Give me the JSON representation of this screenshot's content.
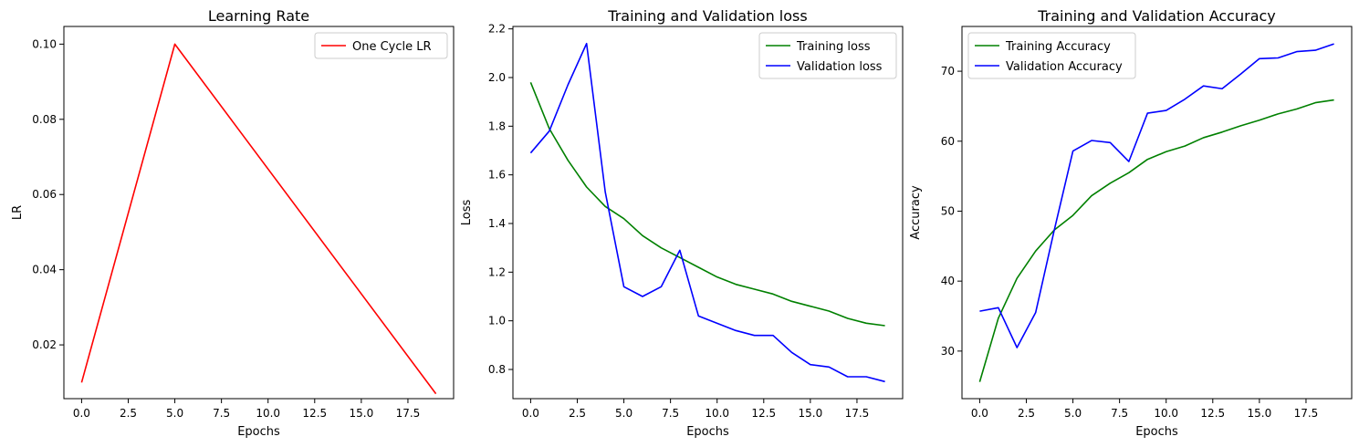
{
  "chart_data": [
    {
      "type": "line",
      "title": "Learning Rate",
      "xlabel": "Epochs",
      "ylabel": "LR",
      "xlim": [
        -0.95,
        19.95
      ],
      "ylim": [
        0.0057,
        0.1047
      ],
      "xticks": [
        0.0,
        2.5,
        5.0,
        7.5,
        10.0,
        12.5,
        15.0,
        17.5
      ],
      "xtick_labels": [
        "0.0",
        "2.5",
        "5.0",
        "7.5",
        "10.0",
        "12.5",
        "15.0",
        "17.5"
      ],
      "yticks": [
        0.02,
        0.04,
        0.06,
        0.08,
        0.1
      ],
      "ytick_labels": [
        "0.02",
        "0.04",
        "0.06",
        "0.08",
        "0.10"
      ],
      "grid": false,
      "legend_position": "upper-right",
      "series": [
        {
          "name": "One Cycle LR",
          "color": "#ff0000",
          "x": [
            0,
            5,
            19
          ],
          "y": [
            0.01,
            0.1,
            0.007
          ]
        }
      ]
    },
    {
      "type": "line",
      "title": "Training and Validation loss",
      "xlabel": "Epochs",
      "ylabel": "Loss",
      "xlim": [
        -0.95,
        19.95
      ],
      "ylim": [
        0.68,
        2.21
      ],
      "xticks": [
        0.0,
        2.5,
        5.0,
        7.5,
        10.0,
        12.5,
        15.0,
        17.5
      ],
      "xtick_labels": [
        "0.0",
        "2.5",
        "5.0",
        "7.5",
        "10.0",
        "12.5",
        "15.0",
        "17.5"
      ],
      "yticks": [
        0.8,
        1.0,
        1.2,
        1.4,
        1.6,
        1.8,
        2.0,
        2.2
      ],
      "ytick_labels": [
        "0.8",
        "1.0",
        "1.2",
        "1.4",
        "1.6",
        "1.8",
        "2.0",
        "2.2"
      ],
      "grid": false,
      "legend_position": "upper-right",
      "series": [
        {
          "name": "Training loss",
          "color": "#008000",
          "x": [
            0,
            1,
            2,
            3,
            4,
            5,
            6,
            7,
            8,
            9,
            10,
            11,
            12,
            13,
            14,
            15,
            16,
            17,
            18,
            19
          ],
          "y": [
            1.98,
            1.79,
            1.66,
            1.55,
            1.47,
            1.42,
            1.35,
            1.3,
            1.26,
            1.22,
            1.18,
            1.15,
            1.13,
            1.11,
            1.08,
            1.06,
            1.04,
            1.01,
            0.99,
            0.98
          ]
        },
        {
          "name": "Validation loss",
          "color": "#0000ff",
          "x": [
            0,
            1,
            2,
            3,
            4,
            5,
            6,
            7,
            8,
            9,
            10,
            11,
            12,
            13,
            14,
            15,
            16,
            17,
            18,
            19
          ],
          "y": [
            1.69,
            1.78,
            1.97,
            2.14,
            1.53,
            1.14,
            1.1,
            1.14,
            1.29,
            1.02,
            0.99,
            0.96,
            0.94,
            0.94,
            0.87,
            0.82,
            0.81,
            0.77,
            0.77,
            0.75
          ]
        }
      ]
    },
    {
      "type": "line",
      "title": "Training and Validation Accuracy",
      "xlabel": "Epochs",
      "ylabel": "Accuracy",
      "xlim": [
        -0.95,
        19.95
      ],
      "ylim": [
        23.2,
        76.4
      ],
      "xticks": [
        0.0,
        2.5,
        5.0,
        7.5,
        10.0,
        12.5,
        15.0,
        17.5
      ],
      "xtick_labels": [
        "0.0",
        "2.5",
        "5.0",
        "7.5",
        "10.0",
        "12.5",
        "15.0",
        "17.5"
      ],
      "yticks": [
        30,
        40,
        50,
        60,
        70
      ],
      "ytick_labels": [
        "30",
        "40",
        "50",
        "60",
        "70"
      ],
      "grid": false,
      "legend_position": "upper-left",
      "series": [
        {
          "name": "Training Accuracy",
          "color": "#008000",
          "x": [
            0,
            1,
            2,
            3,
            4,
            5,
            6,
            7,
            8,
            9,
            10,
            11,
            12,
            13,
            14,
            15,
            16,
            17,
            18,
            19
          ],
          "y": [
            25.6,
            34.7,
            40.4,
            44.3,
            47.3,
            49.4,
            52.2,
            54.0,
            55.5,
            57.4,
            58.5,
            59.3,
            60.5,
            61.3,
            62.2,
            63.0,
            63.9,
            64.6,
            65.5,
            65.9
          ]
        },
        {
          "name": "Validation Accuracy",
          "color": "#0000ff",
          "x": [
            0,
            1,
            2,
            3,
            4,
            5,
            6,
            7,
            8,
            9,
            10,
            11,
            12,
            13,
            14,
            15,
            16,
            17,
            18,
            19
          ],
          "y": [
            35.7,
            36.2,
            30.5,
            35.5,
            47.3,
            58.6,
            60.1,
            59.8,
            57.1,
            64.0,
            64.4,
            66.0,
            67.9,
            67.5,
            69.6,
            71.8,
            71.9,
            72.8,
            73.0,
            73.9
          ]
        }
      ]
    }
  ]
}
